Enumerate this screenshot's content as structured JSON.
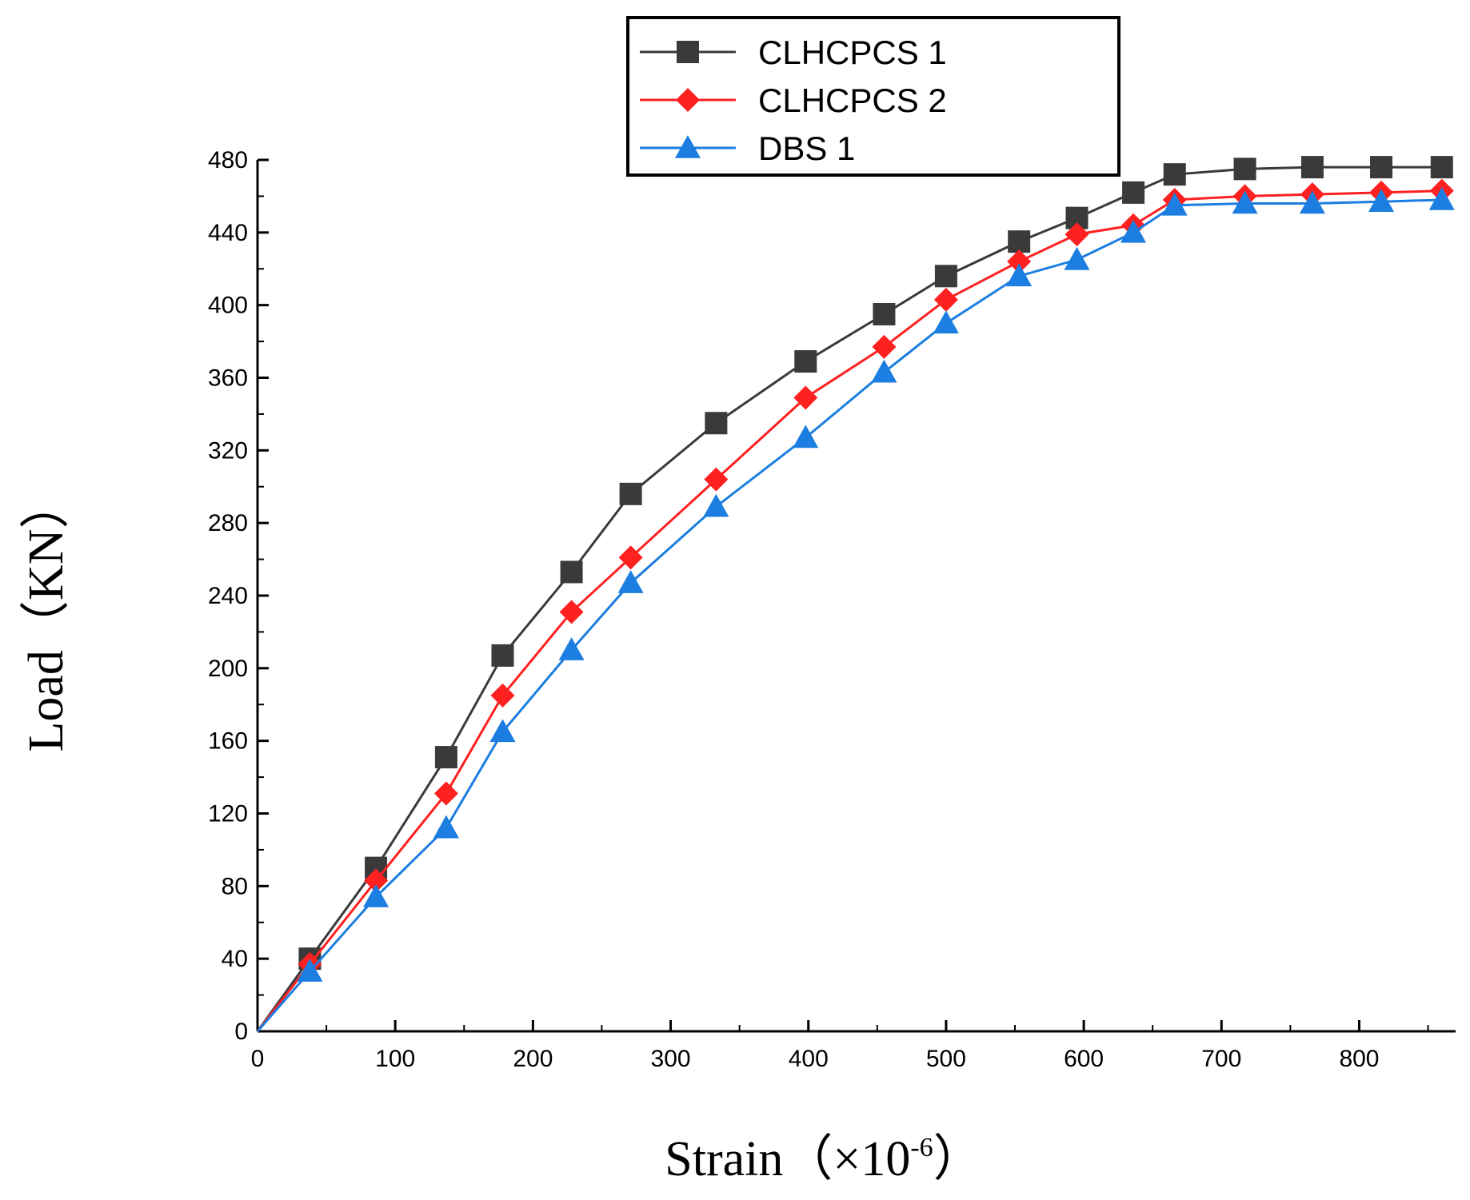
{
  "chart_data": {
    "type": "line",
    "title": "",
    "xlabel": "Strain（×10",
    "xlabel_exp": "-6",
    "xlabel_close": "）",
    "ylabel": "Load（KN）",
    "xlim": [
      0,
      870
    ],
    "ylim": [
      0,
      480
    ],
    "xticks": [
      0,
      100,
      200,
      300,
      400,
      500,
      600,
      700,
      800
    ],
    "yticks": [
      0,
      40,
      80,
      120,
      160,
      200,
      240,
      280,
      320,
      360,
      400,
      440,
      480
    ],
    "grid": false,
    "legend_position": "top-center",
    "series": [
      {
        "name": "CLHCPCS 1",
        "color": "#3a3a3a",
        "marker": "square",
        "x": [
          0,
          38,
          86,
          137,
          178,
          228,
          271,
          333,
          398,
          455,
          500,
          553,
          595,
          636,
          666,
          717,
          766,
          816,
          860
        ],
        "y": [
          0,
          40,
          90,
          151,
          207,
          253,
          296,
          335,
          369,
          395,
          416,
          435,
          448,
          462,
          472,
          475,
          476,
          476,
          476
        ]
      },
      {
        "name": "CLHCPCS 2",
        "color": "#ff2020",
        "marker": "diamond",
        "x": [
          0,
          38,
          86,
          137,
          178,
          228,
          271,
          333,
          398,
          455,
          500,
          553,
          595,
          636,
          666,
          717,
          766,
          816,
          860
        ],
        "y": [
          0,
          37,
          83,
          131,
          185,
          231,
          261,
          304,
          349,
          377,
          403,
          424,
          439,
          444,
          458,
          460,
          461,
          462,
          463
        ]
      },
      {
        "name": "DBS 1",
        "color": "#1b7ee0",
        "marker": "triangle",
        "x": [
          0,
          38,
          86,
          137,
          178,
          228,
          271,
          333,
          398,
          455,
          500,
          553,
          595,
          636,
          666,
          717,
          766,
          816,
          860
        ],
        "y": [
          0,
          33,
          74,
          112,
          165,
          210,
          247,
          289,
          327,
          363,
          390,
          416,
          425,
          440,
          455,
          456,
          456,
          457,
          458
        ]
      }
    ]
  }
}
